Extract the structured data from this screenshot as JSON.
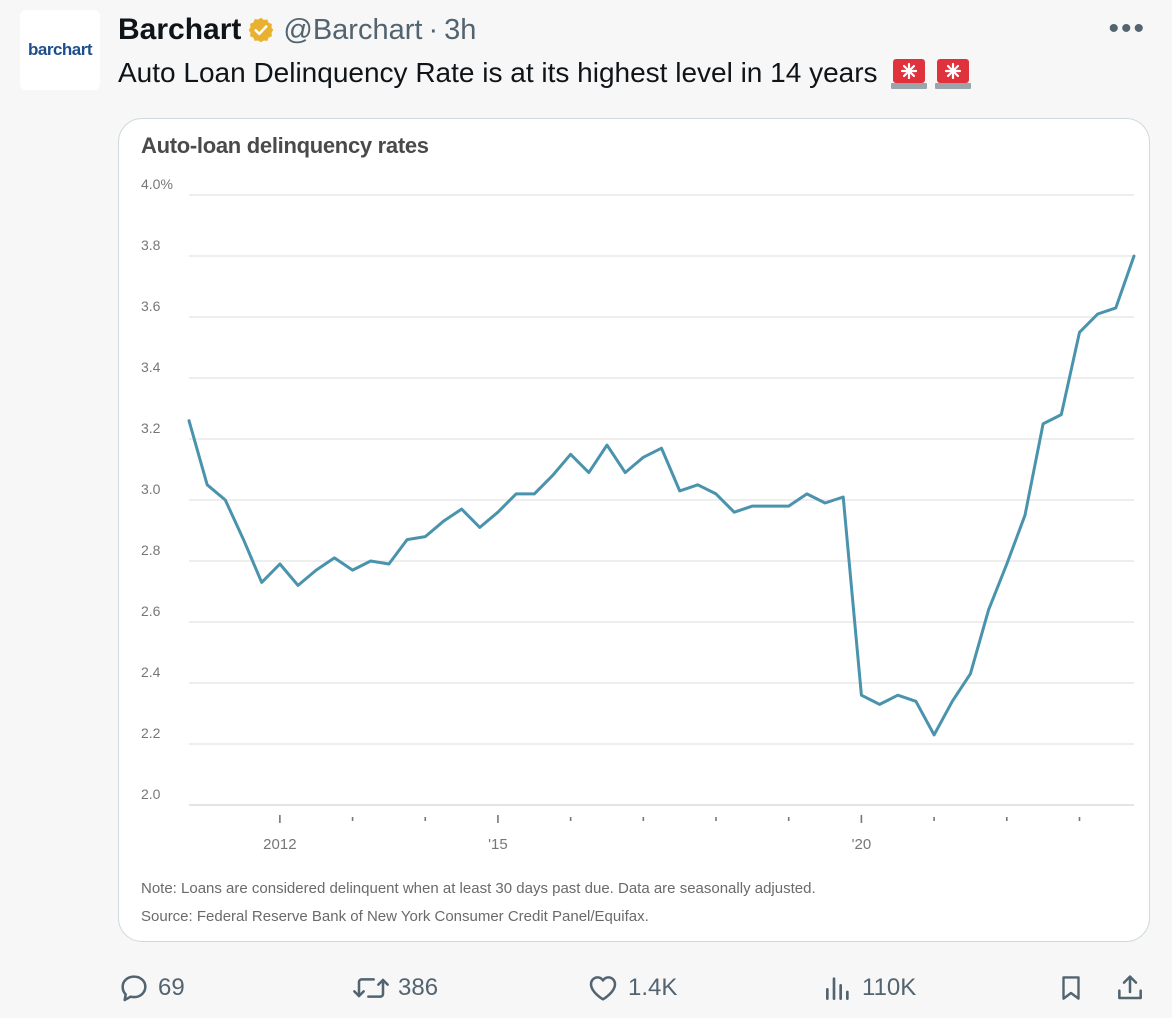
{
  "tweet": {
    "avatar_text": "barchart",
    "display_name": "Barchart",
    "handle": "@Barchart",
    "separator": "·",
    "time": "3h",
    "more_icon": "more-icon",
    "text": "Auto Loan Delinquency Rate is at its highest level in 14 years",
    "emoji_icons": [
      "siren-icon",
      "siren-icon"
    ]
  },
  "chart_data": {
    "type": "line",
    "title": "Auto-loan delinquency rates",
    "ylim": [
      2.0,
      4.0
    ],
    "yticks": [
      {
        "value": 4.0,
        "label": "4.0%"
      },
      {
        "value": 3.8,
        "label": "3.8"
      },
      {
        "value": 3.6,
        "label": "3.6"
      },
      {
        "value": 3.4,
        "label": "3.4"
      },
      {
        "value": 3.2,
        "label": "3.2"
      },
      {
        "value": 3.0,
        "label": "3.0"
      },
      {
        "value": 2.8,
        "label": "2.8"
      },
      {
        "value": 2.6,
        "label": "2.6"
      },
      {
        "value": 2.4,
        "label": "2.4"
      },
      {
        "value": 2.2,
        "label": "2.2"
      },
      {
        "value": 2.0,
        "label": "2.0"
      }
    ],
    "xlim": [
      2010.75,
      2023.75
    ],
    "xticks": [
      {
        "value": 2012,
        "label": "2012"
      },
      {
        "value": 2015,
        "label": "'15"
      },
      {
        "value": 2020,
        "label": "'20"
      }
    ],
    "minor_xticks": [
      2013,
      2014,
      2016,
      2017,
      2018,
      2019,
      2021,
      2022,
      2023
    ],
    "grid": true,
    "line_color": "#4a93ad",
    "series": [
      {
        "x": [
          2010.75,
          2011.0,
          2011.25,
          2011.5,
          2011.75,
          2012.0,
          2012.25,
          2012.5,
          2012.75,
          2013.0,
          2013.25,
          2013.5,
          2013.75,
          2014.0,
          2014.25,
          2014.5,
          2014.75,
          2015.0,
          2015.25,
          2015.5,
          2015.75,
          2016.0,
          2016.25,
          2016.5,
          2016.75,
          2017.0,
          2017.25,
          2017.5,
          2017.75,
          2018.0,
          2018.25,
          2018.5,
          2018.75,
          2019.0,
          2019.25,
          2019.5,
          2019.75,
          2020.0,
          2020.25,
          2020.5,
          2020.75,
          2021.0,
          2021.25,
          2021.5,
          2021.75,
          2022.0,
          2022.25,
          2022.5,
          2022.75,
          2023.0,
          2023.25,
          2023.5,
          2023.75
        ],
        "values": [
          3.26,
          3.05,
          3.0,
          2.87,
          2.73,
          2.79,
          2.72,
          2.77,
          2.81,
          2.77,
          2.8,
          2.79,
          2.87,
          2.88,
          2.93,
          2.97,
          2.91,
          2.96,
          3.02,
          3.02,
          3.08,
          3.15,
          3.09,
          3.18,
          3.09,
          3.14,
          3.17,
          3.03,
          3.05,
          3.02,
          2.96,
          2.98,
          2.98,
          2.98,
          3.02,
          2.99,
          3.01,
          2.36,
          2.33,
          2.36,
          2.34,
          2.23,
          2.34,
          2.43,
          2.64,
          2.79,
          2.95,
          3.25,
          3.28,
          3.55,
          3.61,
          3.63,
          3.8
        ]
      }
    ],
    "note": "Note: Loans are considered delinquent when at least 30 days past due. Data are seasonally adjusted.",
    "source": "Source: Federal Reserve Bank of New York Consumer Credit Panel/Equifax."
  },
  "actions": {
    "reply": {
      "icon": "reply-icon",
      "count": "69"
    },
    "repost": {
      "icon": "repost-icon",
      "count": "386"
    },
    "like": {
      "icon": "heart-icon",
      "count": "1.4K"
    },
    "views": {
      "icon": "views-icon",
      "count": "110K"
    },
    "bookmark": {
      "icon": "bookmark-icon"
    },
    "share": {
      "icon": "share-icon"
    }
  },
  "colors": {
    "verified_gold": "#e8b12f",
    "siren_red": "#e0323c",
    "muted_text": "#536471"
  }
}
